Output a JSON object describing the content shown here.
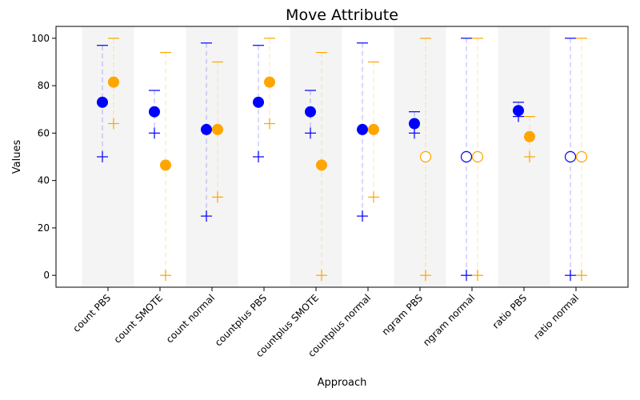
{
  "chart_data": {
    "type": "scatter",
    "title": "Move Attribute",
    "xlabel": "Approach",
    "ylabel": "Values",
    "ylim": [
      -5,
      105
    ],
    "yticks": [
      0,
      20,
      40,
      60,
      80,
      100
    ],
    "grid": false,
    "shaded_bands": true,
    "categories": [
      "count PBS",
      "count SMOTE",
      "count normal",
      "countplus PBS",
      "countplus SMOTE",
      "countplus normal",
      "ngram PBS",
      "ngram normal",
      "ratio PBS",
      "ratio normal"
    ],
    "series": [
      {
        "color": "#0000ff",
        "mean": [
          73,
          69,
          61.5,
          73,
          69,
          61.5,
          64,
          50,
          69.5,
          50
        ],
        "filled": [
          true,
          true,
          true,
          true,
          true,
          true,
          true,
          false,
          true,
          false
        ],
        "min": [
          50,
          60,
          25,
          50,
          60,
          25,
          60,
          0,
          67,
          0
        ],
        "max": [
          97,
          78,
          98,
          97,
          78,
          98,
          69,
          100,
          73,
          100
        ]
      },
      {
        "color": "#ffa500",
        "mean": [
          81.5,
          46.5,
          61.5,
          81.5,
          46.5,
          61.5,
          50,
          50,
          58.5,
          50
        ],
        "filled": [
          true,
          true,
          true,
          true,
          true,
          true,
          false,
          false,
          true,
          false
        ],
        "min": [
          64,
          0,
          33,
          64,
          0,
          33,
          0,
          0,
          50,
          0
        ],
        "max": [
          100,
          94,
          90,
          100,
          94,
          90,
          100,
          100,
          67,
          100
        ]
      }
    ]
  }
}
